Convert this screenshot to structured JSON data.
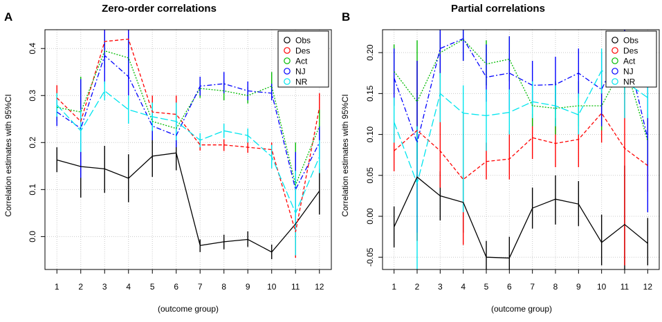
{
  "figure": {
    "panels": [
      {
        "letter": "A",
        "title": "Zero-order correlations",
        "xlabel": "(outcome group)",
        "ylabel": "Correlation estimates with 95%CI"
      },
      {
        "letter": "B",
        "title": "Partial correlations",
        "xlabel": "(outcome group)",
        "ylabel": "Correlation estimates with 95%CI"
      }
    ]
  },
  "chart_data": [
    {
      "type": "line",
      "panel": "A",
      "title": "Zero-order correlations",
      "xlabel": "(outcome group)",
      "ylabel": "Correlation estimates with 95%CI",
      "x": [
        1,
        2,
        3,
        4,
        5,
        6,
        7,
        8,
        9,
        10,
        11,
        12
      ],
      "xlim": [
        0.5,
        12.5
      ],
      "ylim": [
        -0.07,
        0.44
      ],
      "yticks": [
        0.0,
        0.1,
        0.2,
        0.3,
        0.4
      ],
      "ytick_labels": [
        "0.0",
        "0.1",
        "0.2",
        "0.3",
        "0.4"
      ],
      "xticks": [
        "1",
        "2",
        "3",
        "4",
        "5",
        "6",
        "7",
        "8",
        "9",
        "10",
        "11",
        "12"
      ],
      "grid": true,
      "legend_position": "top-right",
      "series": [
        {
          "name": "Obs",
          "color": "#000000",
          "dash": "solid",
          "values": [
            0.163,
            0.149,
            0.144,
            0.124,
            0.171,
            0.178,
            -0.019,
            -0.011,
            -0.006,
            -0.033,
            0.027,
            0.097
          ],
          "lower": [
            0.137,
            0.083,
            0.093,
            0.073,
            0.127,
            0.141,
            -0.033,
            -0.027,
            -0.022,
            -0.048,
            -0.005,
            0.047
          ],
          "upper": [
            0.19,
            0.199,
            0.193,
            0.175,
            0.215,
            0.214,
            -0.006,
            0.004,
            0.011,
            -0.017,
            0.06,
            0.144
          ]
        },
        {
          "name": "Des",
          "color": "#ff0000",
          "dash": "dashed",
          "values": [
            0.295,
            0.245,
            0.415,
            0.42,
            0.265,
            0.26,
            0.195,
            0.195,
            0.19,
            0.185,
            0.01,
            0.275
          ],
          "lower": [
            0.268,
            0.2,
            0.39,
            0.39,
            0.228,
            0.22,
            0.183,
            0.182,
            0.178,
            0.17,
            -0.045,
            0.25
          ],
          "upper": [
            0.322,
            0.29,
            0.44,
            0.44,
            0.3,
            0.3,
            0.207,
            0.207,
            0.202,
            0.2,
            0.06,
            0.305
          ]
        },
        {
          "name": "Act",
          "color": "#00bb00",
          "dash": "dotted",
          "values": [
            0.275,
            0.265,
            0.395,
            0.38,
            0.245,
            0.23,
            0.315,
            0.31,
            0.3,
            0.32,
            0.11,
            0.235
          ],
          "lower": [
            0.245,
            0.19,
            0.36,
            0.34,
            0.21,
            0.2,
            0.295,
            0.29,
            0.283,
            0.3,
            0.02,
            0.2
          ],
          "upper": [
            0.305,
            0.34,
            0.43,
            0.42,
            0.285,
            0.26,
            0.335,
            0.33,
            0.318,
            0.35,
            0.2,
            0.27
          ]
        },
        {
          "name": "NJ",
          "color": "#0000ff",
          "dash": "dashdot",
          "values": [
            0.265,
            0.23,
            0.385,
            0.34,
            0.235,
            0.215,
            0.32,
            0.325,
            0.31,
            0.305,
            0.1,
            0.2
          ],
          "lower": [
            0.235,
            0.125,
            0.325,
            0.3,
            0.205,
            0.19,
            0.3,
            0.305,
            0.29,
            0.29,
            0.02,
            0.165
          ],
          "upper": [
            0.295,
            0.335,
            0.44,
            0.44,
            0.265,
            0.245,
            0.34,
            0.35,
            0.33,
            0.325,
            0.18,
            0.235
          ]
        },
        {
          "name": "NR",
          "color": "#00e5ee",
          "dash": "longdash",
          "values": [
            0.28,
            0.225,
            0.31,
            0.27,
            0.255,
            0.245,
            0.205,
            0.225,
            0.215,
            0.17,
            0.05,
            0.17
          ],
          "lower": [
            0.255,
            0.18,
            0.29,
            0.24,
            0.225,
            0.205,
            0.19,
            0.21,
            0.2,
            0.145,
            -0.04,
            0.135
          ],
          "upper": [
            0.305,
            0.27,
            0.33,
            0.3,
            0.285,
            0.285,
            0.22,
            0.24,
            0.23,
            0.195,
            0.14,
            0.205
          ]
        }
      ]
    },
    {
      "type": "line",
      "panel": "B",
      "title": "Partial correlations",
      "xlabel": "(outcome group)",
      "ylabel": "Correlation estimates with 95%CI",
      "x": [
        1,
        2,
        3,
        4,
        5,
        6,
        7,
        8,
        9,
        10,
        11,
        12
      ],
      "xlim": [
        0.5,
        12.5
      ],
      "ylim": [
        -0.065,
        0.228
      ],
      "yticks": [
        -0.05,
        0.0,
        0.05,
        0.1,
        0.15,
        0.2
      ],
      "ytick_labels": [
        "-0.05",
        "0.00",
        "0.05",
        "0.10",
        "0.15",
        "0.20"
      ],
      "xticks": [
        "1",
        "2",
        "3",
        "4",
        "5",
        "6",
        "7",
        "8",
        "9",
        "10",
        "11",
        "12"
      ],
      "grid": true,
      "legend_position": "top-right",
      "series": [
        {
          "name": "Obs",
          "color": "#000000",
          "dash": "solid",
          "values": [
            -0.013,
            0.048,
            0.025,
            0.017,
            -0.05,
            -0.051,
            0.01,
            0.021,
            0.015,
            -0.032,
            -0.01,
            -0.033
          ],
          "lower": [
            -0.038,
            -0.03,
            -0.005,
            -0.02,
            -0.068,
            -0.075,
            -0.015,
            -0.01,
            -0.012,
            -0.06,
            -0.065,
            -0.06
          ],
          "upper": [
            0.012,
            0.105,
            0.055,
            0.05,
            -0.03,
            -0.025,
            0.035,
            0.05,
            0.043,
            0.002,
            0.062,
            -0.002
          ]
        },
        {
          "name": "Des",
          "color": "#ff0000",
          "dash": "dashed",
          "values": [
            0.08,
            0.105,
            0.08,
            0.045,
            0.067,
            0.07,
            0.096,
            0.089,
            0.094,
            0.126,
            0.083,
            0.062
          ],
          "lower": [
            0.055,
            -0.03,
            0.035,
            -0.035,
            0.045,
            0.045,
            0.07,
            0.06,
            0.06,
            0.09,
            -0.06,
            0.03
          ],
          "upper": [
            0.11,
            0.19,
            0.225,
            0.125,
            0.09,
            0.105,
            0.125,
            0.12,
            0.125,
            0.165,
            0.225,
            0.095
          ]
        },
        {
          "name": "Act",
          "color": "#00bb00",
          "dash": "dotted",
          "values": [
            0.177,
            0.14,
            0.2,
            0.216,
            0.186,
            0.192,
            0.135,
            0.132,
            0.135,
            0.135,
            0.188,
            0.092
          ],
          "lower": [
            0.15,
            0.07,
            0.17,
            0.19,
            0.16,
            0.165,
            0.11,
            0.1,
            0.11,
            0.105,
            0.155,
            0.06
          ],
          "upper": [
            0.21,
            0.215,
            0.23,
            0.23,
            0.215,
            0.22,
            0.16,
            0.165,
            0.165,
            0.165,
            0.22,
            0.125
          ]
        },
        {
          "name": "NJ",
          "color": "#0000ff",
          "dash": "dashdot",
          "values": [
            0.169,
            0.09,
            0.205,
            0.217,
            0.17,
            0.175,
            0.16,
            0.161,
            0.175,
            0.155,
            0.215,
            0.095
          ],
          "lower": [
            0.135,
            -0.02,
            0.175,
            0.19,
            0.14,
            0.13,
            0.135,
            0.13,
            0.145,
            0.11,
            0.18,
            0.005
          ],
          "upper": [
            0.205,
            0.19,
            0.235,
            0.235,
            0.21,
            0.22,
            0.19,
            0.195,
            0.205,
            0.2,
            0.235,
            0.18
          ]
        },
        {
          "name": "NR",
          "color": "#00e5ee",
          "dash": "longdash",
          "values": [
            0.115,
            0.04,
            0.15,
            0.126,
            0.123,
            0.127,
            0.14,
            0.135,
            0.124,
            0.178,
            0.165,
            0.145
          ],
          "lower": [
            0.09,
            -0.065,
            0.115,
            0.005,
            0.08,
            0.1,
            0.12,
            0.11,
            0.1,
            0.15,
            0.12,
            0.12
          ],
          "upper": [
            0.145,
            0.11,
            0.175,
            0.16,
            0.155,
            0.155,
            0.165,
            0.16,
            0.15,
            0.205,
            0.21,
            0.17
          ]
        }
      ]
    }
  ]
}
